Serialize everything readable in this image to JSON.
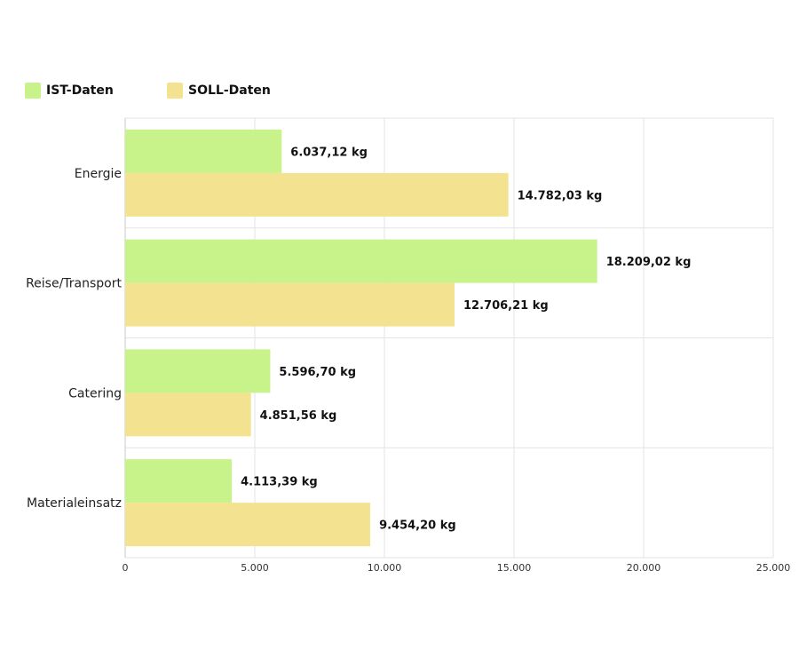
{
  "chart_data": {
    "type": "bar",
    "orientation": "horizontal",
    "categories": [
      "Energie",
      "Reise/Transport",
      "Catering",
      "Materialeinsatz"
    ],
    "series": [
      {
        "name": "IST-Daten",
        "color": "#c8f28a",
        "values": [
          6037.12,
          18209.02,
          5596.7,
          4113.39
        ],
        "labels": [
          "6.037,12 kg",
          "18.209,02 kg",
          "5.596,70 kg",
          "4.113,39 kg"
        ]
      },
      {
        "name": "SOLL-Daten",
        "color": "#f3e391",
        "values": [
          14782.03,
          12706.21,
          4851.56,
          9454.2
        ],
        "labels": [
          "14.782,03 kg",
          "12.706,21 kg",
          "4.851,56 kg",
          "9.454,20 kg"
        ]
      }
    ],
    "x_ticks": [
      0,
      5000,
      10000,
      15000,
      20000,
      25000
    ],
    "x_tick_labels": [
      "0",
      "5.000",
      "10.000",
      "15.000",
      "20.000",
      "25.000"
    ],
    "xlim": [
      0,
      25000
    ],
    "grid": true,
    "legend_position": "top-left"
  }
}
